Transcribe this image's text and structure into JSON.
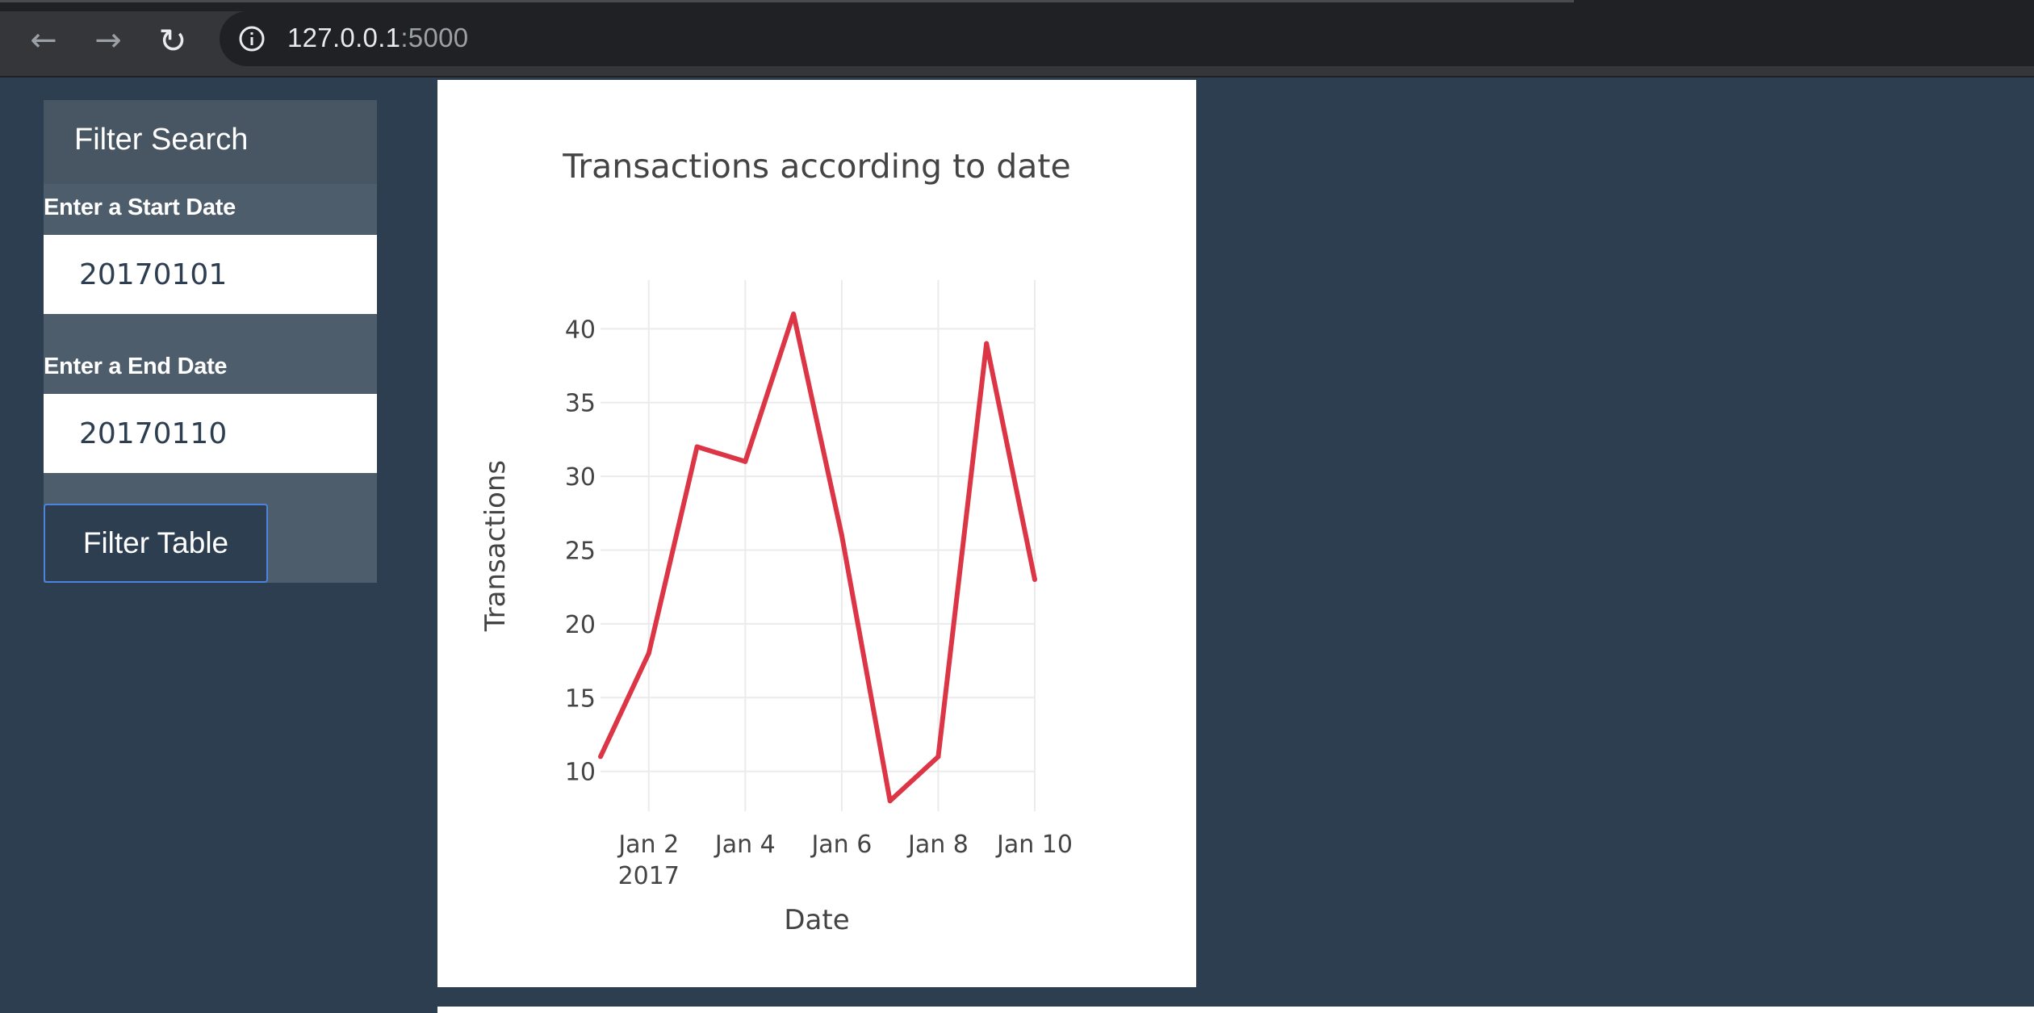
{
  "browser": {
    "url_host": "127.0.0.1",
    "url_port": ":5000"
  },
  "filter": {
    "heading": "Filter Search",
    "start_label": "Enter a Start Date",
    "start_value": "20170101",
    "end_label": "Enter a End Date",
    "end_value": "20170110",
    "button_label": "Filter Table"
  },
  "colors": {
    "page_bg": "#2c3e50",
    "panel_bg": "#4e5d6c",
    "line": "#dc3545"
  },
  "chart_data": {
    "type": "line",
    "title": "Transactions according to date",
    "xlabel": "Date",
    "ylabel": "Transactions",
    "x": [
      "2017-01-01",
      "2017-01-02",
      "2017-01-03",
      "2017-01-04",
      "2017-01-05",
      "2017-01-06",
      "2017-01-07",
      "2017-01-08",
      "2017-01-09",
      "2017-01-10"
    ],
    "values": [
      11,
      18,
      32,
      31,
      41,
      26,
      8,
      11,
      39,
      23
    ],
    "xlim": [
      "2017-01-01",
      "2017-01-10"
    ],
    "ylim": [
      7.3,
      43.3
    ],
    "y_ticks": [
      10,
      15,
      20,
      25,
      30,
      35,
      40
    ],
    "x_ticks": [
      {
        "date": "2017-01-02",
        "label": "Jan 2",
        "sublabel": "2017"
      },
      {
        "date": "2017-01-04",
        "label": "Jan 4",
        "sublabel": ""
      },
      {
        "date": "2017-01-06",
        "label": "Jan 6",
        "sublabel": ""
      },
      {
        "date": "2017-01-08",
        "label": "Jan 8",
        "sublabel": ""
      },
      {
        "date": "2017-01-10",
        "label": "Jan 10",
        "sublabel": ""
      }
    ],
    "grid": true,
    "line_color": "#dc3545"
  }
}
